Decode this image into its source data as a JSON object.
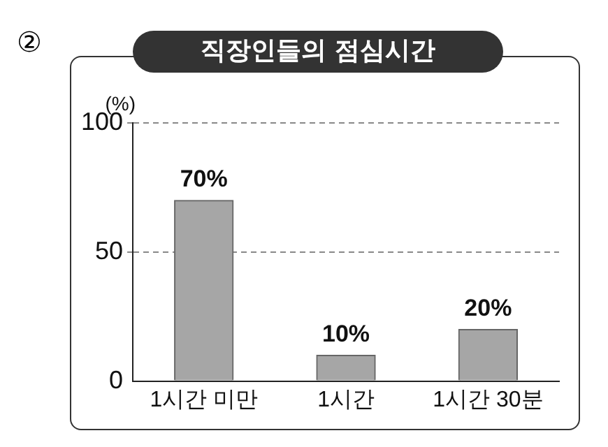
{
  "chart_data": {
    "type": "bar",
    "title": "직장인들의 점심시간",
    "ylabel": "(%)",
    "annotations": [
      "②"
    ],
    "categories": [
      "1시간 미만",
      "1시간",
      "1시간 30분"
    ],
    "values": [
      70,
      10,
      20
    ],
    "color": "#a6a6a6",
    "value_labels": [
      "70%",
      "10%",
      "20%"
    ],
    "ylim": [
      0,
      100
    ],
    "yticks": [
      0,
      50,
      100
    ],
    "grid": "y",
    "legend": false
  }
}
